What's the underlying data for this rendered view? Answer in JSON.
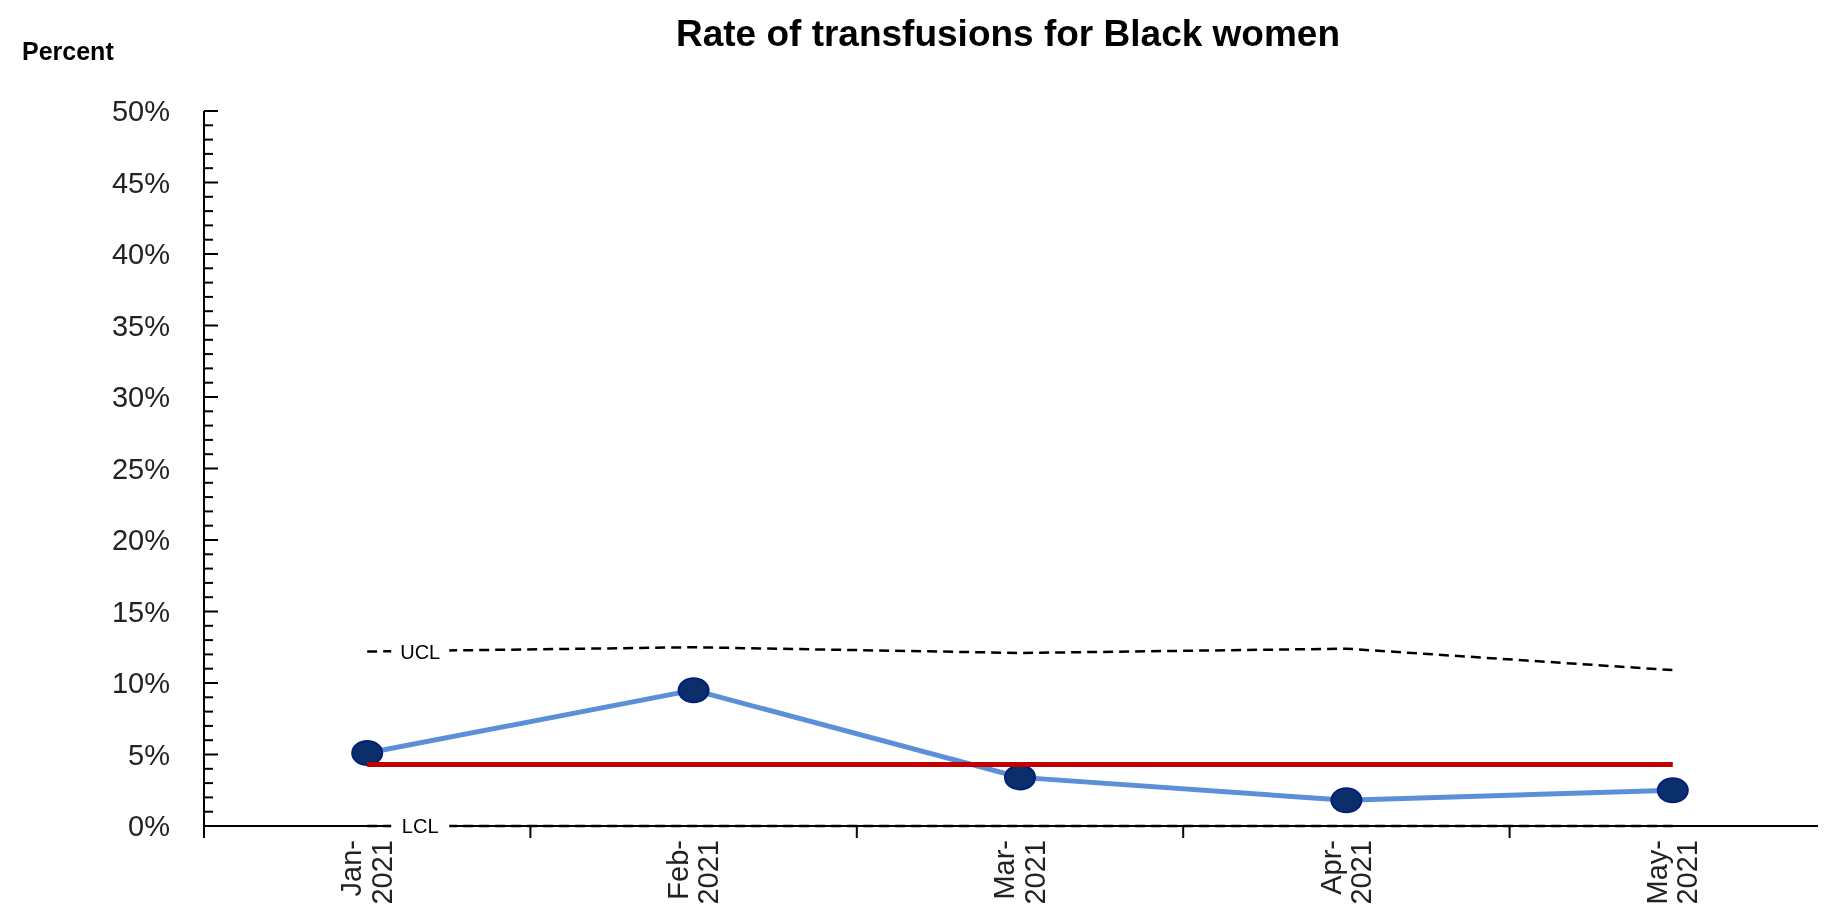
{
  "chart_data": {
    "type": "line",
    "title": "Rate of transfusions for Black women",
    "ylabel": "Percent",
    "categories": [
      "Jan-2021",
      "Feb-2021",
      "Mar-2021",
      "Apr-2021",
      "May-2021"
    ],
    "series": [
      {
        "color": "#5b8fd8",
        "values": [
          5.1,
          9.5,
          3.4,
          1.8,
          2.5
        ],
        "marker": "circle"
      },
      {
        "color": "#c00000",
        "values": [
          4.3,
          4.3,
          4.3,
          4.3,
          4.3
        ],
        "marker": "none"
      },
      {
        "name": "UCL",
        "color": "#000000",
        "values": [
          12.2,
          12.5,
          12.1,
          12.4,
          10.9
        ],
        "marker": "none",
        "line_style": "dashed"
      },
      {
        "name": "LCL",
        "color": "#000000",
        "values": [
          0,
          0,
          0,
          0,
          0
        ],
        "marker": "none",
        "line_style": "dashed"
      }
    ],
    "ylim": [
      0,
      50
    ],
    "yticks": [
      {
        "value": 0,
        "label": "0%"
      },
      {
        "value": 1,
        "label": null
      },
      {
        "value": 2,
        "label": null
      },
      {
        "value": 3,
        "label": null
      },
      {
        "value": 4,
        "label": null
      },
      {
        "value": 5,
        "label": "5%"
      },
      {
        "value": 6,
        "label": null
      },
      {
        "value": 7,
        "label": null
      },
      {
        "value": 8,
        "label": null
      },
      {
        "value": 9,
        "label": null
      },
      {
        "value": 10,
        "label": "10%"
      },
      {
        "value": 11,
        "label": null
      },
      {
        "value": 12,
        "label": null
      },
      {
        "value": 13,
        "label": null
      },
      {
        "value": 14,
        "label": null
      },
      {
        "value": 15,
        "label": "15%"
      },
      {
        "value": 16,
        "label": null
      },
      {
        "value": 17,
        "label": null
      },
      {
        "value": 18,
        "label": null
      },
      {
        "value": 19,
        "label": null
      },
      {
        "value": 20,
        "label": "20%"
      },
      {
        "value": 21,
        "label": null
      },
      {
        "value": 22,
        "label": null
      },
      {
        "value": 23,
        "label": null
      },
      {
        "value": 24,
        "label": null
      },
      {
        "value": 25,
        "label": "25%"
      },
      {
        "value": 26,
        "label": null
      },
      {
        "value": 27,
        "label": null
      },
      {
        "value": 28,
        "label": null
      },
      {
        "value": 29,
        "label": null
      },
      {
        "value": 30,
        "label": "30%"
      },
      {
        "value": 31,
        "label": null
      },
      {
        "value": 32,
        "label": null
      },
      {
        "value": 33,
        "label": null
      },
      {
        "value": 34,
        "label": null
      },
      {
        "value": 35,
        "label": "35%"
      },
      {
        "value": 36,
        "label": null
      },
      {
        "value": 37,
        "label": null
      },
      {
        "value": 38,
        "label": null
      },
      {
        "value": 39,
        "label": null
      },
      {
        "value": 40,
        "label": "40%"
      },
      {
        "value": 41,
        "label": null
      },
      {
        "value": 42,
        "label": null
      },
      {
        "value": 43,
        "label": null
      },
      {
        "value": 44,
        "label": null
      },
      {
        "value": 45,
        "label": "45%"
      },
      {
        "value": 46,
        "label": null
      },
      {
        "value": 47,
        "label": null
      },
      {
        "value": 48,
        "label": null
      },
      {
        "value": 49,
        "label": null
      },
      {
        "value": 50,
        "label": "50%"
      }
    ],
    "grid": false
  }
}
